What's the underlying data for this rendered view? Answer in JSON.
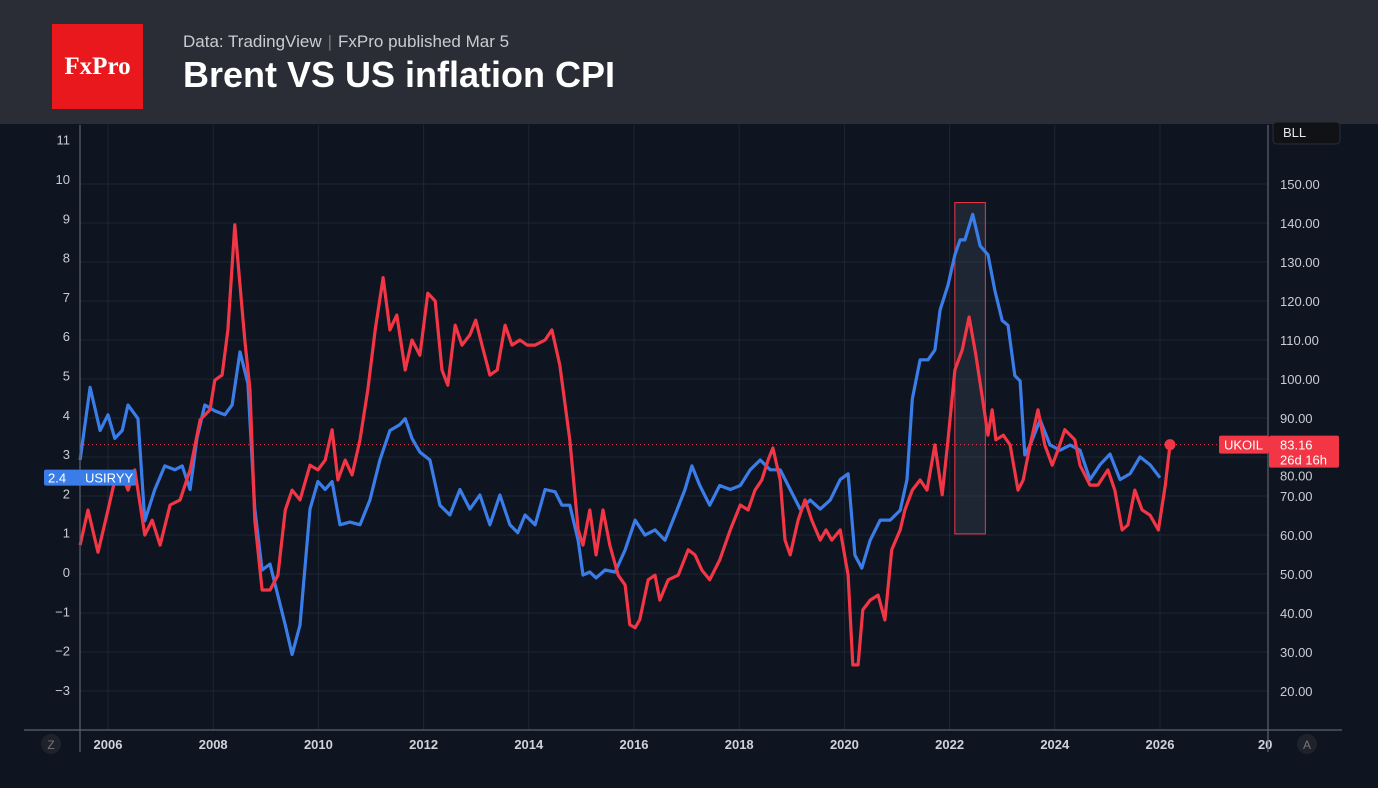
{
  "header": {
    "logo": "FxPro",
    "source": "Data: TradingView",
    "publisher": "FxPro published Mar 5",
    "title": "Brent VS US inflation CPI"
  },
  "chart_data": {
    "type": "line",
    "title": "Brent VS US inflation CPI",
    "x_ticks": [
      "2006",
      "2008",
      "2010",
      "2012",
      "2014",
      "2016",
      "2018",
      "2020",
      "2022",
      "2024",
      "2026",
      "20"
    ],
    "xlim": [
      2005.47,
      2028.1
    ],
    "left_axis": {
      "ylim": [
        -3.5,
        11.4
      ],
      "ticks": [
        "11",
        "10",
        "9",
        "8",
        "7",
        "6",
        "5",
        "4",
        "3",
        "2",
        "1",
        "0",
        "−1",
        "−2",
        "−3"
      ]
    },
    "right_axis": {
      "ylim": [
        10,
        158
      ],
      "ticks": [
        "150.00",
        "140.00",
        "130.00",
        "120.00",
        "110.00",
        "100.00",
        "90.00",
        "80.00",
        "70.00",
        "60.00",
        "50.00",
        "40.00",
        "30.00",
        "20.00"
      ]
    },
    "grid": true,
    "series": [
      {
        "name": "USIRYY",
        "axis": "left",
        "color": "#3b7de8",
        "last_label": "2.4",
        "x": [
          2005.47,
          2005.66,
          2005.85,
          2006.0,
          2006.13,
          2006.27,
          2006.38,
          2006.57,
          2006.7,
          2006.89,
          2007.08,
          2007.27,
          2007.41,
          2007.56,
          2007.69,
          2007.84,
          2008.03,
          2008.22,
          2008.36,
          2008.51,
          2008.66,
          2008.79,
          2008.93,
          2009.08,
          2009.23,
          2009.37,
          2009.5,
          2009.65,
          2009.84,
          2009.99,
          2010.13,
          2010.26,
          2010.41,
          2010.6,
          2010.79,
          2010.98,
          2011.17,
          2011.36,
          2011.55,
          2011.65,
          2011.78,
          2011.93,
          2012.12,
          2012.31,
          2012.5,
          2012.69,
          2012.88,
          2013.07,
          2013.26,
          2013.45,
          2013.64,
          2013.79,
          2013.93,
          2014.12,
          2014.31,
          2014.5,
          2014.63,
          2014.78,
          2014.94,
          2015.03,
          2015.16,
          2015.28,
          2015.45,
          2015.64,
          2015.83,
          2016.02,
          2016.21,
          2016.4,
          2016.59,
          2016.78,
          2016.97,
          2017.1,
          2017.25,
          2017.44,
          2017.63,
          2017.83,
          2018.02,
          2018.21,
          2018.4,
          2018.59,
          2018.78,
          2018.97,
          2019.16,
          2019.35,
          2019.54,
          2019.73,
          2019.92,
          2020.07,
          2020.2,
          2020.33,
          2020.49,
          2020.68,
          2020.87,
          2021.06,
          2021.19,
          2021.29,
          2021.44,
          2021.59,
          2021.72,
          2021.82,
          2021.97,
          2022.1,
          2022.2,
          2022.29,
          2022.44,
          2022.58,
          2022.73,
          2022.86,
          2023.0,
          2023.11,
          2023.24,
          2023.34,
          2023.43,
          2023.53,
          2023.72,
          2023.91,
          2024.1,
          2024.29,
          2024.48,
          2024.67,
          2024.86,
          2025.05,
          2025.24,
          2025.43,
          2025.62,
          2025.81,
          2026.0
        ],
        "y": [
          2.85,
          4.7,
          3.6,
          4.0,
          3.4,
          3.6,
          4.25,
          3.9,
          1.3,
          2.1,
          2.7,
          2.6,
          2.7,
          2.1,
          3.4,
          4.25,
          4.1,
          4.0,
          4.25,
          5.6,
          4.8,
          1.6,
          0.05,
          0.2,
          -0.6,
          -1.35,
          -2.1,
          -1.35,
          1.6,
          2.3,
          2.1,
          2.3,
          1.2,
          1.27,
          1.2,
          1.83,
          2.85,
          3.6,
          3.75,
          3.9,
          3.4,
          3.05,
          2.85,
          1.7,
          1.45,
          2.1,
          1.6,
          1.96,
          1.2,
          1.96,
          1.2,
          1.0,
          1.45,
          1.2,
          2.1,
          2.04,
          1.7,
          1.7,
          0.8,
          -0.08,
          0,
          -0.15,
          0.05,
          0,
          0.56,
          1.32,
          0.94,
          1.07,
          0.81,
          1.45,
          2.1,
          2.7,
          2.2,
          1.7,
          2.2,
          2.1,
          2.2,
          2.6,
          2.85,
          2.6,
          2.6,
          2.1,
          1.6,
          1.83,
          1.6,
          1.83,
          2.35,
          2.5,
          0.43,
          0.1,
          0.81,
          1.32,
          1.32,
          1.57,
          2.35,
          4.4,
          5.4,
          5.4,
          5.65,
          6.67,
          7.3,
          8.07,
          8.45,
          8.45,
          9.1,
          8.3,
          8.07,
          7.17,
          6.4,
          6.28,
          5.0,
          4.86,
          2.98,
          3.23,
          3.87,
          3.23,
          3.1,
          3.23,
          3.1,
          2.35,
          2.73,
          3.0,
          2.35,
          2.5,
          2.93,
          2.73,
          2.4
        ]
      },
      {
        "name": "UKOIL",
        "axis": "right",
        "color": "#f23645",
        "last_label": "83.16",
        "countdown": "26d 16h",
        "x": [
          2005.47,
          2005.62,
          2005.81,
          2006.0,
          2006.13,
          2006.27,
          2006.38,
          2006.51,
          2006.7,
          2006.84,
          2006.99,
          2007.18,
          2007.37,
          2007.56,
          2007.75,
          2007.94,
          2008.03,
          2008.17,
          2008.28,
          2008.41,
          2008.51,
          2008.6,
          2008.7,
          2008.79,
          2008.93,
          2009.08,
          2009.23,
          2009.37,
          2009.5,
          2009.65,
          2009.84,
          2009.99,
          2010.13,
          2010.26,
          2010.37,
          2010.51,
          2010.64,
          2010.79,
          2010.94,
          2011.08,
          2011.23,
          2011.36,
          2011.49,
          2011.65,
          2011.78,
          2011.93,
          2012.08,
          2012.22,
          2012.35,
          2012.46,
          2012.6,
          2012.73,
          2012.88,
          2012.99,
          2013.11,
          2013.26,
          2013.4,
          2013.55,
          2013.68,
          2013.83,
          2013.97,
          2014.12,
          2014.31,
          2014.44,
          2014.59,
          2014.78,
          2014.94,
          2015.03,
          2015.16,
          2015.28,
          2015.41,
          2015.54,
          2015.7,
          2015.83,
          2015.92,
          2016.02,
          2016.11,
          2016.27,
          2016.4,
          2016.49,
          2016.65,
          2016.84,
          2017.03,
          2017.16,
          2017.29,
          2017.44,
          2017.63,
          2017.83,
          2018.02,
          2018.17,
          2018.3,
          2018.43,
          2018.55,
          2018.64,
          2018.78,
          2018.87,
          2018.97,
          2019.12,
          2019.25,
          2019.38,
          2019.54,
          2019.65,
          2019.76,
          2019.92,
          2020.07,
          2020.16,
          2020.26,
          2020.35,
          2020.49,
          2020.64,
          2020.77,
          2020.9,
          2021.06,
          2021.15,
          2021.29,
          2021.44,
          2021.57,
          2021.72,
          2021.86,
          2021.97,
          2022.1,
          2022.24,
          2022.37,
          2022.5,
          2022.63,
          2022.73,
          2022.81,
          2022.88,
          2023.02,
          2023.15,
          2023.3,
          2023.4,
          2023.53,
          2023.68,
          2023.81,
          2023.95,
          2024.06,
          2024.19,
          2024.38,
          2024.48,
          2024.67,
          2024.82,
          2025.01,
          2025.14,
          2025.28,
          2025.39,
          2025.52,
          2025.66,
          2025.81,
          2025.97,
          2026.1,
          2026.19
        ],
        "y": [
          57.4,
          66.4,
          55.6,
          66.4,
          74.1,
          75.4,
          71.5,
          76.7,
          60.0,
          63.8,
          57.4,
          67.7,
          69.0,
          76.7,
          89.5,
          92.1,
          99.7,
          101.0,
          112.6,
          139.5,
          124.1,
          110.0,
          97.2,
          63.8,
          45.9,
          45.9,
          49.7,
          66.4,
          71.5,
          69.0,
          77.9,
          76.7,
          79.2,
          87.0,
          74.1,
          79.2,
          75.4,
          84.4,
          97.2,
          112.6,
          126.0,
          112.6,
          116.4,
          102.3,
          110.0,
          106.1,
          122.0,
          120.0,
          102.3,
          98.4,
          113.8,
          108.7,
          111.3,
          115.1,
          108.7,
          101.0,
          102.3,
          113.8,
          108.7,
          110.0,
          108.7,
          108.7,
          110.0,
          112.6,
          103.6,
          84.4,
          61.3,
          57.4,
          66.4,
          54.9,
          66.4,
          57.4,
          49.7,
          47.2,
          37.0,
          36.2,
          38.3,
          48.5,
          49.7,
          43.3,
          48.5,
          49.7,
          56.2,
          54.9,
          51.0,
          48.5,
          53.6,
          61.3,
          67.7,
          66.4,
          71.5,
          74.1,
          79.2,
          82.3,
          74.1,
          58.7,
          54.9,
          63.8,
          69.0,
          63.8,
          58.7,
          61.3,
          58.7,
          61.3,
          49.7,
          26.7,
          26.7,
          40.8,
          43.3,
          44.6,
          38.2,
          56.2,
          61.3,
          66.4,
          71.5,
          74.1,
          71.5,
          83.1,
          70.3,
          84.4,
          102.3,
          107.4,
          115.9,
          106.1,
          94.6,
          85.6,
          92.1,
          84.4,
          85.6,
          83.1,
          71.5,
          74.1,
          83.1,
          92.1,
          83.1,
          77.9,
          81.8,
          87.0,
          84.4,
          77.9,
          72.8,
          72.8,
          76.7,
          71.5,
          61.3,
          62.6,
          71.5,
          66.4,
          65.1,
          61.3,
          72.8,
          83.16
        ]
      }
    ],
    "highlight": {
      "x": [
        2022.1,
        2022.68
      ],
      "y_left": [
        0.97,
        9.4
      ]
    },
    "price_line": 83.16
  },
  "axis_buttons": {
    "left": "Z",
    "right": "A",
    "corner": "BLL"
  }
}
